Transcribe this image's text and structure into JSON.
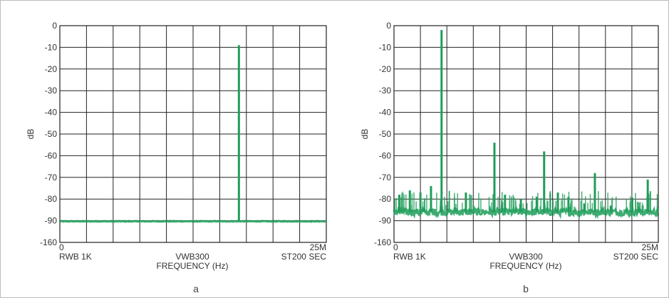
{
  "panels": [
    {
      "id": "a",
      "label": "a",
      "ylabel": "dB",
      "xlabel": "FREQUENCY (Hz)",
      "x_left": "0",
      "x_right": "25M",
      "footer_left": "RWB 1K",
      "footer_center": "VWB300",
      "footer_right": "ST200 SEC"
    },
    {
      "id": "b",
      "label": "b",
      "ylabel": "dB",
      "xlabel": "FREQUENCY (Hz)",
      "x_left": "0",
      "x_right": "25M",
      "footer_left": "RWB 1K",
      "footer_center": "VWB300",
      "footer_right": "ST200 SEC"
    }
  ],
  "chart_data": [
    {
      "type": "line",
      "panel": "a",
      "color": "#1f9d5a",
      "xlim": [
        0,
        25
      ],
      "x_unit": "MHz",
      "y_ticks": [
        "0",
        "-10",
        "-20",
        "-30",
        "-40",
        "-50",
        "-60",
        "-70",
        "-80",
        "-90",
        "-160"
      ],
      "grid": true,
      "grid_divisions_x": 10,
      "noise_floor_db": -92,
      "spikes": [
        {
          "x": 16.8,
          "y": -9
        }
      ]
    },
    {
      "type": "line",
      "panel": "b",
      "color": "#1f9d5a",
      "xlim": [
        0,
        25
      ],
      "x_unit": "MHz",
      "y_ticks": [
        "0",
        "-10",
        "-20",
        "-30",
        "-40",
        "-50",
        "-60",
        "-70",
        "-80",
        "-90",
        "-160"
      ],
      "grid": true,
      "grid_divisions_x": 10,
      "noise_floor_db": -86,
      "spikes": [
        {
          "x": 4.5,
          "y": -2
        },
        {
          "x": 9.5,
          "y": -54
        },
        {
          "x": 14.2,
          "y": -58
        },
        {
          "x": 19.0,
          "y": -68
        },
        {
          "x": 24.0,
          "y": -71
        },
        {
          "x": 0.5,
          "y": -78
        },
        {
          "x": 1.5,
          "y": -76
        },
        {
          "x": 2.5,
          "y": -77
        },
        {
          "x": 3.5,
          "y": -74
        },
        {
          "x": 6.8,
          "y": -77
        },
        {
          "x": 10.5,
          "y": -78
        },
        {
          "x": 12.0,
          "y": -80
        },
        {
          "x": 13.5,
          "y": -79
        },
        {
          "x": 15.5,
          "y": -77
        },
        {
          "x": 16.5,
          "y": -79
        },
        {
          "x": 18.0,
          "y": -82
        },
        {
          "x": 20.5,
          "y": -83
        },
        {
          "x": 22.0,
          "y": -85
        }
      ]
    }
  ]
}
